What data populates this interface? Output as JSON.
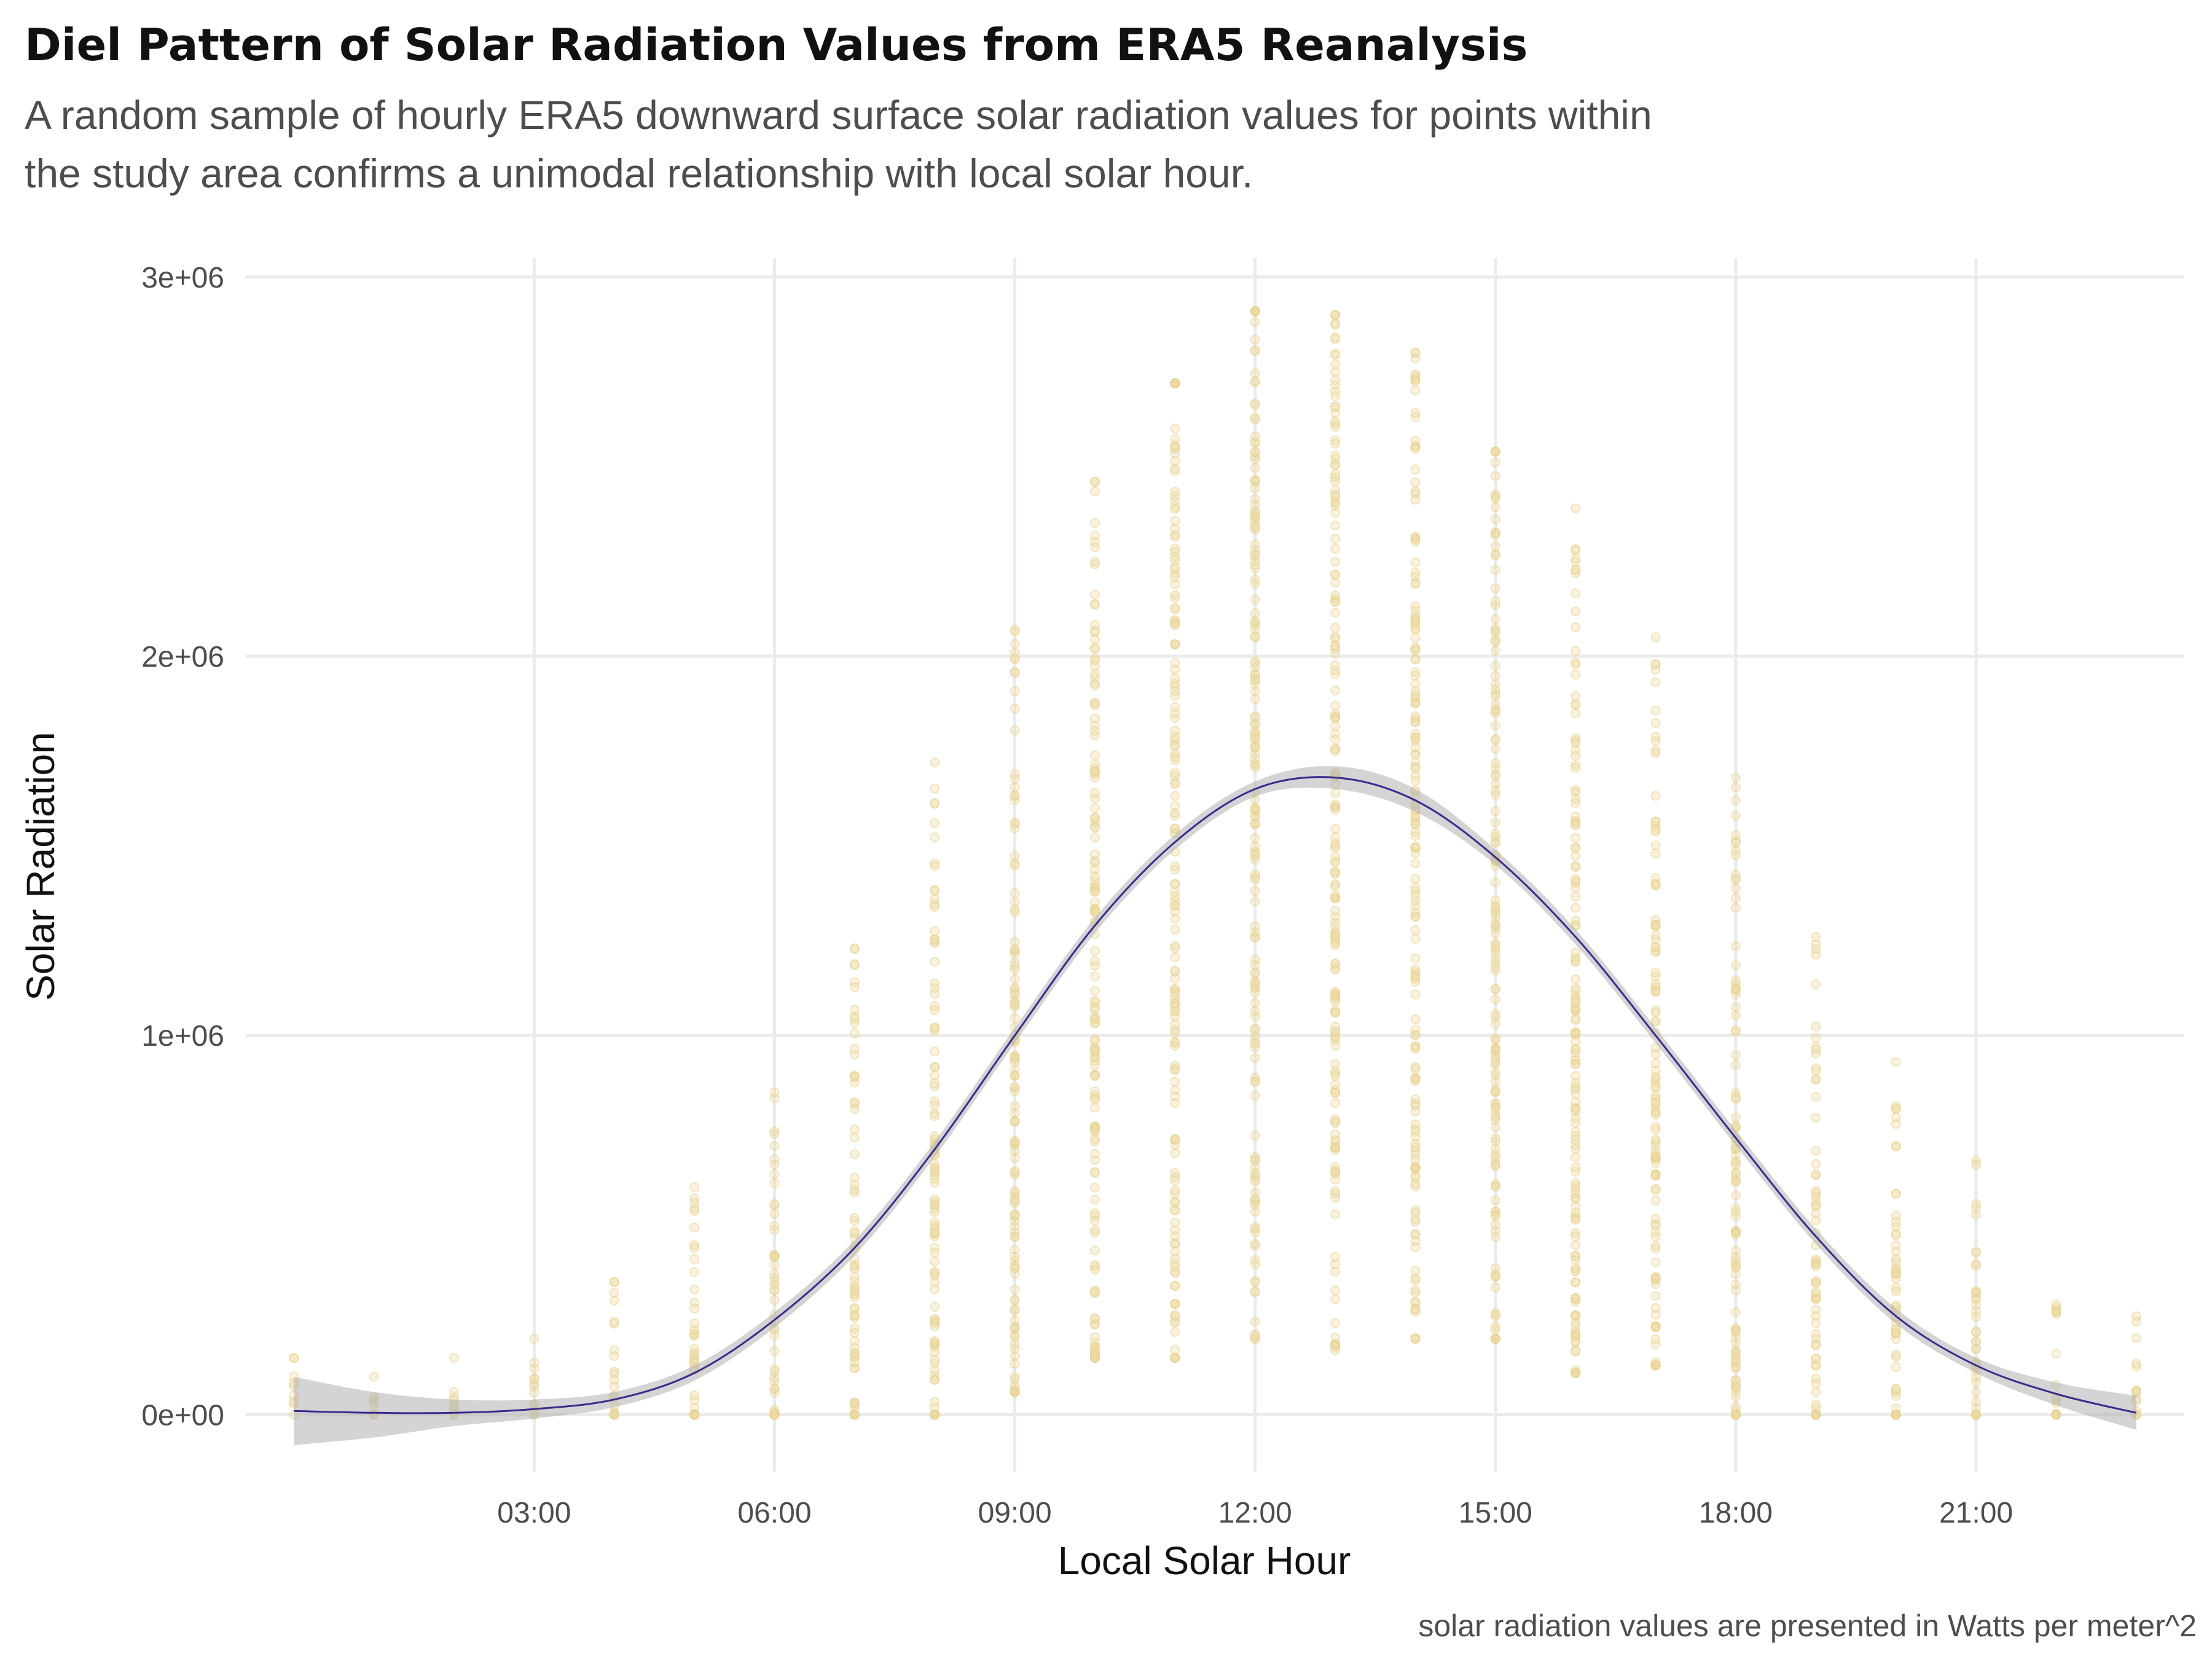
{
  "chart_data": {
    "type": "scatter",
    "title": "Diel Pattern of Solar Radiation Values from ERA5 Reanalysis",
    "subtitle_lines": [
      "A random sample of hourly ERA5 downward surface solar radiation values for points within",
      "the study area confirms a unimodal relationship with local solar hour."
    ],
    "xlabel": "Local Solar Hour",
    "ylabel": "Solar Radiation",
    "caption": "solar radiation values are presented in Watts per meter^2",
    "xlim": [
      -0.6,
      23.6
    ],
    "ylim": [
      -150000,
      3050000
    ],
    "x_ticks": [
      {
        "value": 3,
        "label": "03:00"
      },
      {
        "value": 6,
        "label": "06:00"
      },
      {
        "value": 9,
        "label": "09:00"
      },
      {
        "value": 12,
        "label": "12:00"
      },
      {
        "value": 15,
        "label": "15:00"
      },
      {
        "value": 18,
        "label": "18:00"
      },
      {
        "value": 21,
        "label": "21:00"
      }
    ],
    "y_ticks": [
      {
        "value": 0,
        "label": "0e+00"
      },
      {
        "value": 1000000,
        "label": "1e+06"
      },
      {
        "value": 2000000,
        "label": "2e+06"
      },
      {
        "value": 3000000,
        "label": "3e+06"
      }
    ],
    "grid": true,
    "point_color": "#efd9a0",
    "smooth_color": "#3d2a8c",
    "ribbon_color": "#b0b0b0",
    "point_ranges": [
      {
        "hour": 0,
        "min": 0,
        "max": 150000
      },
      {
        "hour": 1,
        "min": 0,
        "max": 100000
      },
      {
        "hour": 2,
        "min": 0,
        "max": 150000
      },
      {
        "hour": 3,
        "min": 0,
        "max": 200000
      },
      {
        "hour": 4,
        "min": 0,
        "max": 350000
      },
      {
        "hour": 5,
        "min": 0,
        "max": 600000
      },
      {
        "hour": 6,
        "min": 0,
        "max": 850000
      },
      {
        "hour": 7,
        "min": 0,
        "max": 1230000
      },
      {
        "hour": 8,
        "min": 0,
        "max": 1720000
      },
      {
        "hour": 9,
        "min": 60000,
        "max": 2070000
      },
      {
        "hour": 10,
        "min": 150000,
        "max": 2460000
      },
      {
        "hour": 11,
        "min": 150000,
        "max": 2720000
      },
      {
        "hour": 12,
        "min": 200000,
        "max": 2910000
      },
      {
        "hour": 13,
        "min": 170000,
        "max": 2900000
      },
      {
        "hour": 14,
        "min": 200000,
        "max": 2800000
      },
      {
        "hour": 15,
        "min": 200000,
        "max": 2540000
      },
      {
        "hour": 16,
        "min": 110000,
        "max": 2390000
      },
      {
        "hour": 17,
        "min": 130000,
        "max": 2050000
      },
      {
        "hour": 18,
        "min": 0,
        "max": 1680000
      },
      {
        "hour": 19,
        "min": 0,
        "max": 1260000
      },
      {
        "hour": 20,
        "min": 0,
        "max": 930000
      },
      {
        "hour": 21,
        "min": 0,
        "max": 670000
      },
      {
        "hour": 22,
        "min": 0,
        "max": 290000
      },
      {
        "hour": 23,
        "min": 0,
        "max": 260000
      }
    ],
    "smooth": {
      "x": [
        0,
        1,
        2,
        3,
        4,
        5,
        6,
        7,
        8,
        9,
        10,
        11,
        12,
        13,
        14,
        15,
        16,
        17,
        18,
        19,
        20,
        21,
        22,
        23
      ],
      "y": [
        10000,
        5000,
        5000,
        15000,
        40000,
        110000,
        250000,
        440000,
        700000,
        1000000,
        1290000,
        1510000,
        1650000,
        1680000,
        1620000,
        1470000,
        1260000,
        1000000,
        730000,
        470000,
        260000,
        130000,
        55000,
        5000
      ],
      "lower": [
        -80000,
        -60000,
        -30000,
        -10000,
        20000,
        90000,
        230000,
        420000,
        680000,
        980000,
        1270000,
        1490000,
        1630000,
        1650000,
        1590000,
        1450000,
        1240000,
        980000,
        710000,
        450000,
        240000,
        110000,
        25000,
        -40000
      ],
      "upper": [
        100000,
        60000,
        40000,
        40000,
        60000,
        130000,
        270000,
        460000,
        720000,
        1020000,
        1310000,
        1530000,
        1670000,
        1710000,
        1650000,
        1490000,
        1280000,
        1020000,
        750000,
        490000,
        280000,
        150000,
        85000,
        50000
      ]
    }
  }
}
